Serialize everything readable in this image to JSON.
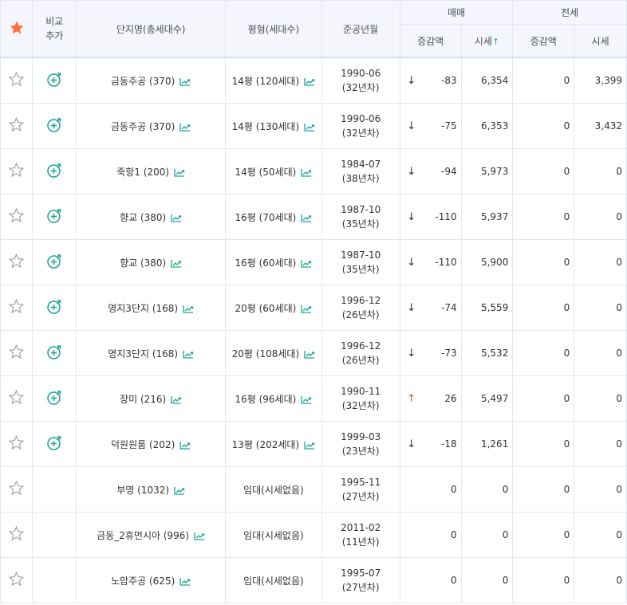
{
  "header": {
    "compare": "비교",
    "add": "추가",
    "complex_name": "단지명(총세대수)",
    "pyeong": "평형(세대수)",
    "built": "준공년월",
    "sale_group": "매매",
    "jeonse_group": "전세",
    "sale_change": "증감액",
    "sale_price": "시세",
    "sort_up_icon": "↑",
    "jeonse_change": "증감액",
    "jeonse_price": "시세"
  },
  "colors": {
    "accent": "#ff6f3a",
    "teal": "#1aa39a",
    "header_bg": "#f4f6fb",
    "border": "#e4e7ee",
    "down_arrow": "#1a2b4a",
    "up_arrow": "#e05020"
  },
  "rows": [
    {
      "name": "금동주공 (370)",
      "pyeong": "14평 (120세대)",
      "ym": "1990-06",
      "age": "(32년차)",
      "dir": "down",
      "arrow": "↓",
      "chg": "-83",
      "price": "6,354",
      "jchg": "0",
      "jprice": "3,399",
      "compare": true
    },
    {
      "name": "금동주공 (370)",
      "pyeong": "14평 (130세대)",
      "ym": "1990-06",
      "age": "(32년차)",
      "dir": "down",
      "arrow": "↓",
      "chg": "-75",
      "price": "6,353",
      "jchg": "0",
      "jprice": "3,432",
      "compare": true
    },
    {
      "name": "죽항1 (200)",
      "pyeong": "14평 (50세대)",
      "ym": "1984-07",
      "age": "(38년차)",
      "dir": "down",
      "arrow": "↓",
      "chg": "-94",
      "price": "5,973",
      "jchg": "0",
      "jprice": "0",
      "compare": true
    },
    {
      "name": "향교 (380)",
      "pyeong": "16평 (70세대)",
      "ym": "1987-10",
      "age": "(35년차)",
      "dir": "down",
      "arrow": "↓",
      "chg": "-110",
      "price": "5,937",
      "jchg": "0",
      "jprice": "0",
      "compare": true
    },
    {
      "name": "향교 (380)",
      "pyeong": "16평 (60세대)",
      "ym": "1987-10",
      "age": "(35년차)",
      "dir": "down",
      "arrow": "↓",
      "chg": "-110",
      "price": "5,900",
      "jchg": "0",
      "jprice": "0",
      "compare": true
    },
    {
      "name": "명지3단지 (168)",
      "pyeong": "20평 (60세대)",
      "ym": "1996-12",
      "age": "(26년차)",
      "dir": "down",
      "arrow": "↓",
      "chg": "-74",
      "price": "5,559",
      "jchg": "0",
      "jprice": "0",
      "compare": true
    },
    {
      "name": "명지3단지 (168)",
      "pyeong": "20평 (108세대)",
      "ym": "1996-12",
      "age": "(26년차)",
      "dir": "down",
      "arrow": "↓",
      "chg": "-73",
      "price": "5,532",
      "jchg": "0",
      "jprice": "0",
      "compare": true
    },
    {
      "name": "장미 (216)",
      "pyeong": "16평 (96세대)",
      "ym": "1990-11",
      "age": "(32년차)",
      "dir": "up",
      "arrow": "↑",
      "chg": "26",
      "price": "5,497",
      "jchg": "0",
      "jprice": "0",
      "compare": true
    },
    {
      "name": "덕원원룸 (202)",
      "pyeong": "13평 (202세대)",
      "ym": "1999-03",
      "age": "(23년차)",
      "dir": "down",
      "arrow": "↓",
      "chg": "-18",
      "price": "1,261",
      "jchg": "0",
      "jprice": "0",
      "compare": true
    },
    {
      "name": "부영 (1032)",
      "pyeong": "임대(시세없음)",
      "ym": "1995-11",
      "age": "(27년차)",
      "dir": "",
      "arrow": "",
      "chg": "0",
      "price": "0",
      "jchg": "0",
      "jprice": "0",
      "compare": false
    },
    {
      "name": "금동_2휴먼시아 (996)",
      "pyeong": "임대(시세없음)",
      "ym": "2011-02",
      "age": "(11년차)",
      "dir": "",
      "arrow": "",
      "chg": "0",
      "price": "0",
      "jchg": "0",
      "jprice": "0",
      "compare": false
    },
    {
      "name": "노암주공 (625)",
      "pyeong": "임대(시세없음)",
      "ym": "1995-07",
      "age": "(27년차)",
      "dir": "",
      "arrow": "",
      "chg": "0",
      "price": "0",
      "jchg": "0",
      "jprice": "0",
      "compare": false
    }
  ]
}
